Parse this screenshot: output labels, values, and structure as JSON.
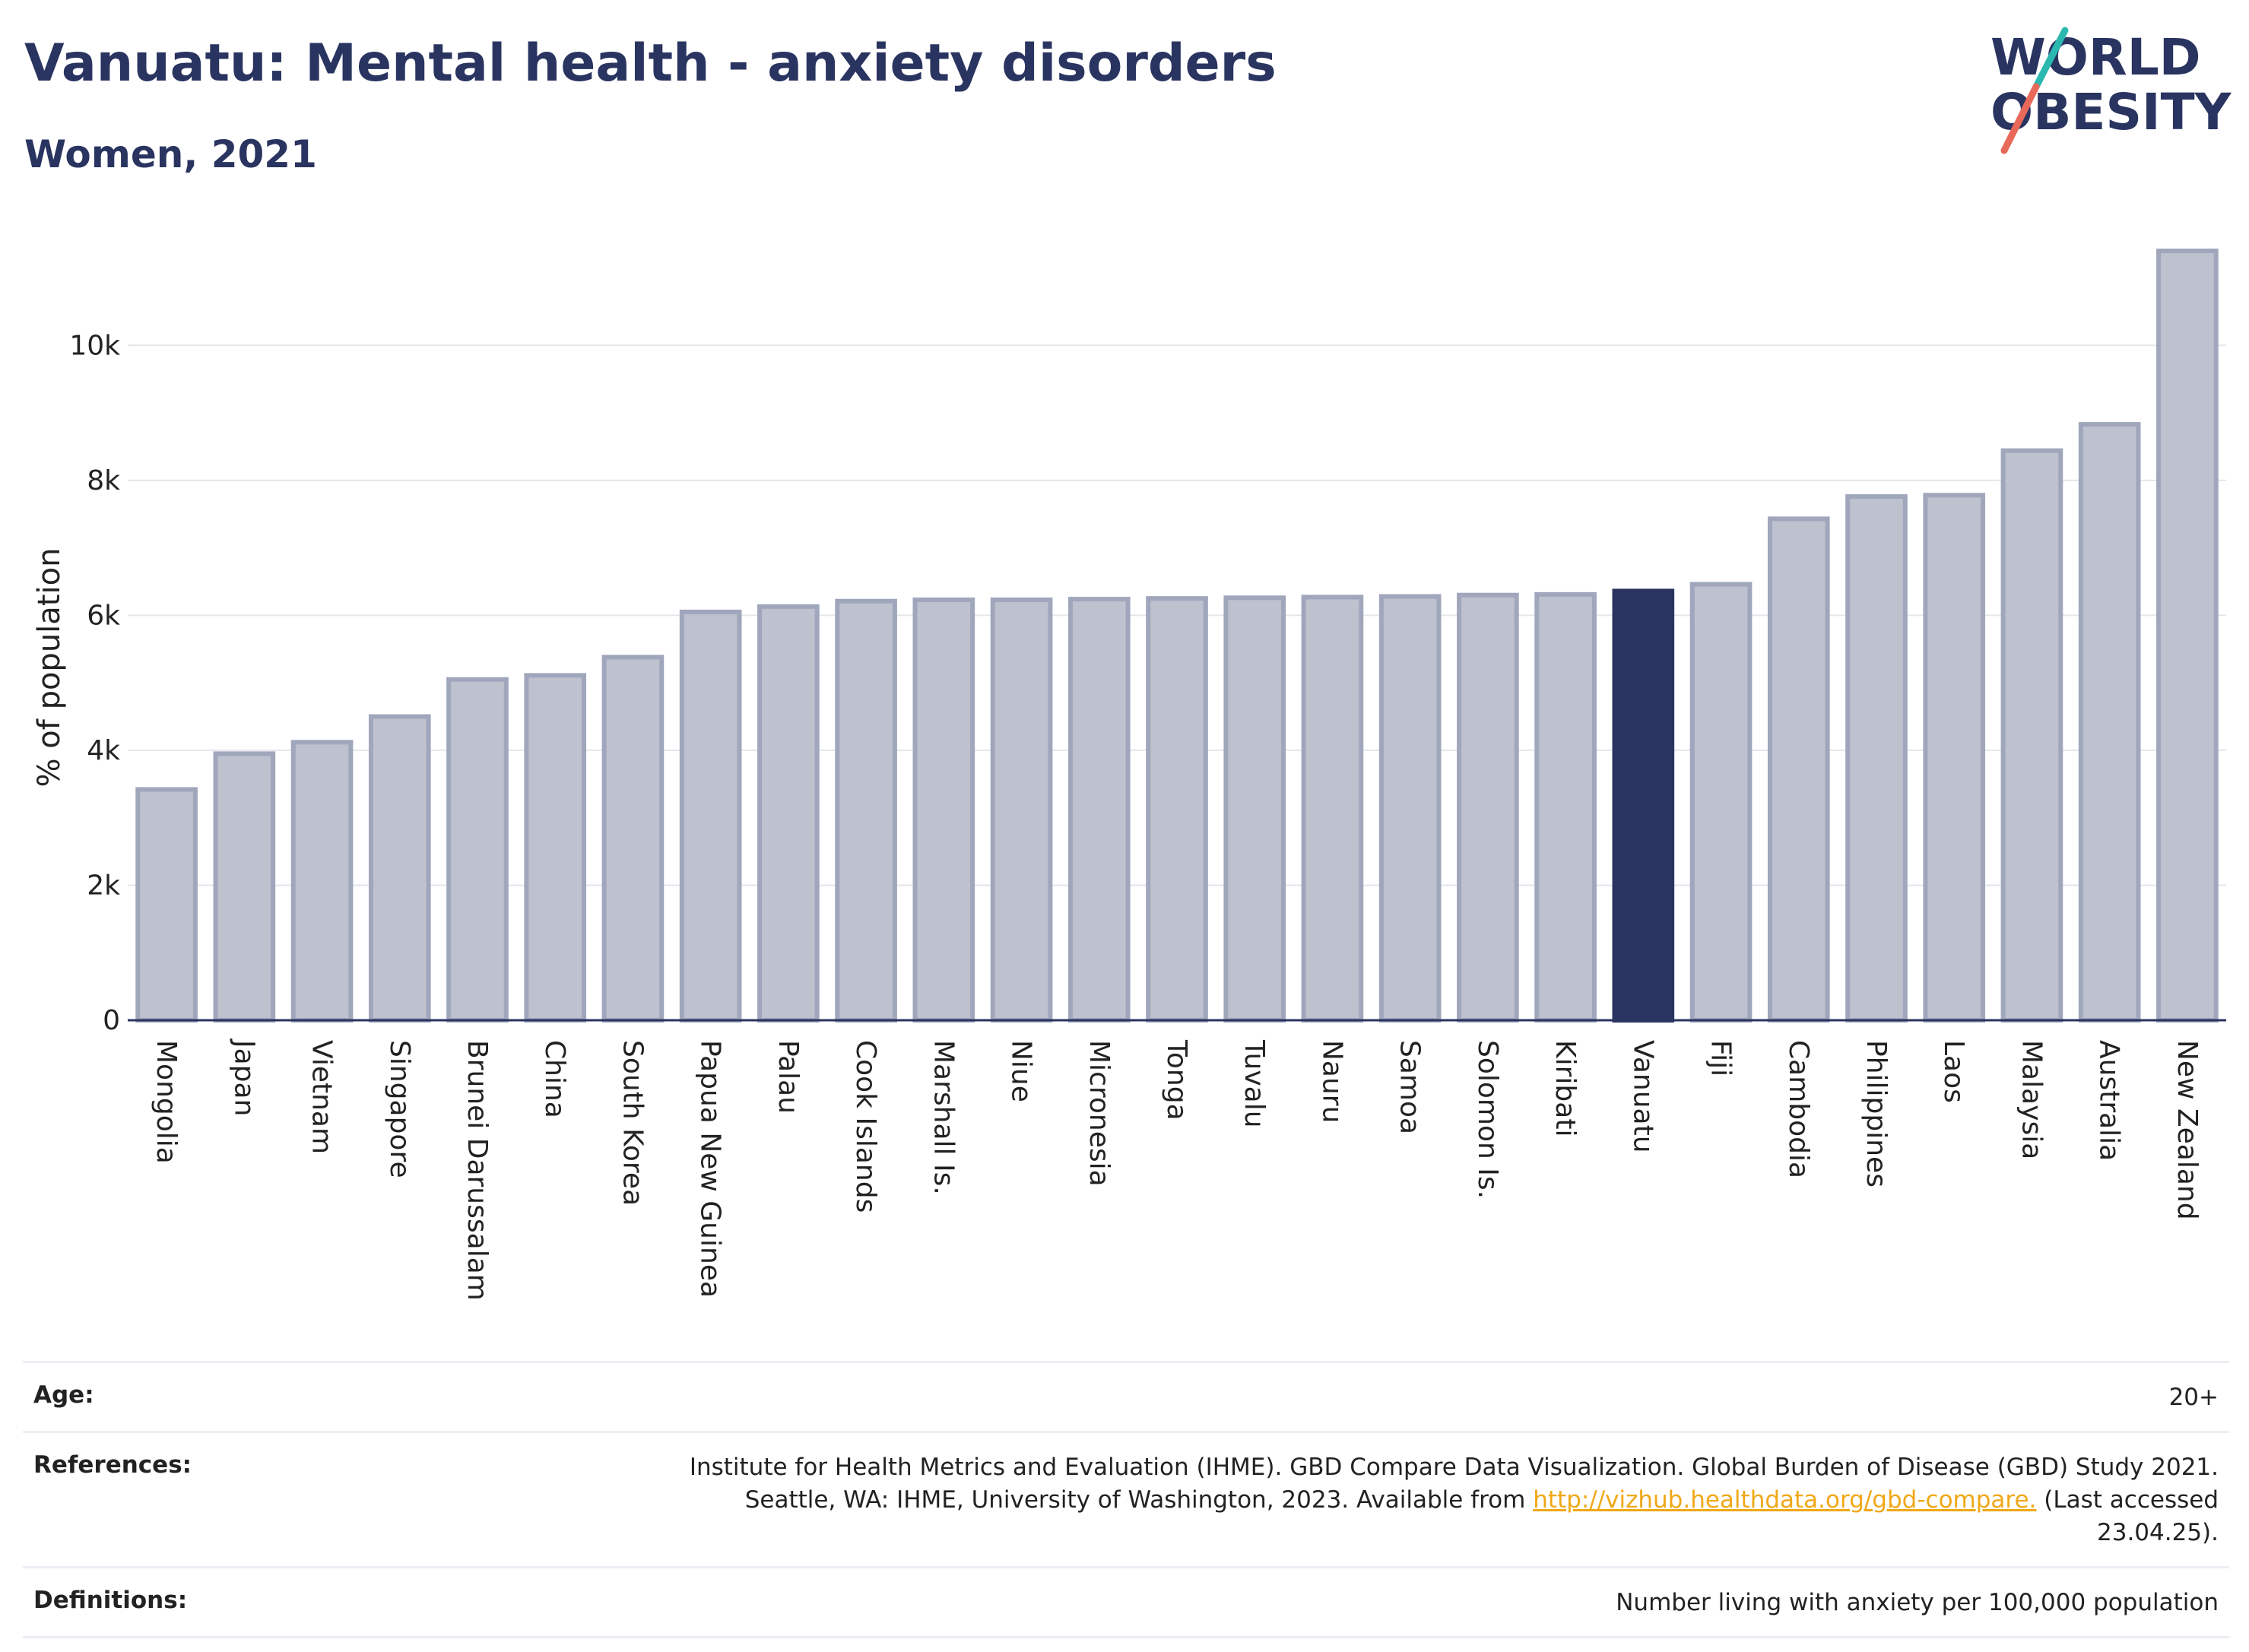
{
  "header": {
    "title": "Vanuatu: Mental health - anxiety disorders",
    "subtitle": "Women, 2021"
  },
  "logo": {
    "line1": "WORLD",
    "line2": "OBESITY",
    "text_color": "#2a3460",
    "slash_color_top": "#2bb8b0",
    "slash_color_bottom": "#e8685a"
  },
  "chart_data": {
    "type": "bar",
    "ylabel": "% of population",
    "xlabel": "",
    "ylim": [
      0,
      11400
    ],
    "yticks": [
      0,
      2000,
      4000,
      6000,
      8000,
      10000
    ],
    "ytick_labels": [
      "0",
      "2k",
      "4k",
      "6k",
      "8k",
      "10k"
    ],
    "grid": true,
    "highlight": "Vanuatu",
    "highlight_color": "#2a3460",
    "bar_color": "#bec1ce",
    "bar_border_color": "#a0a6bc",
    "categories": [
      "Mongolia",
      "Japan",
      "Vietnam",
      "Singapore",
      "Brunei Darussalam",
      "China",
      "South Korea",
      "Papua New Guinea",
      "Palau",
      "Cook Islands",
      "Marshall Is.",
      "Niue",
      "Micronesia",
      "Tonga",
      "Tuvalu",
      "Nauru",
      "Samoa",
      "Solomon Is.",
      "Kiribati",
      "Vanuatu",
      "Fiji",
      "Cambodia",
      "Philippines",
      "Laos",
      "Malaysia",
      "Australia",
      "New Zealand"
    ],
    "values": [
      3420,
      3950,
      4120,
      4500,
      5050,
      5110,
      5380,
      6050,
      6130,
      6210,
      6230,
      6230,
      6240,
      6250,
      6260,
      6270,
      6280,
      6300,
      6310,
      6360,
      6460,
      7430,
      7760,
      7780,
      8440,
      8830,
      11400
    ]
  },
  "info": {
    "age_label": "Age:",
    "age_value": "20+",
    "references_label": "References:",
    "references_text": "Institute for Health Metrics and Evaluation (IHME). GBD Compare Data Visualization. Global Burden of Disease (GBD) Study 2021. Seattle, WA: IHME, University of Washington, 2023. Available from",
    "references_link": "http://vizhub.healthdata.org/gbd-compare.",
    "references_suffix": "(Last accessed 23.04.25).",
    "definitions_label": "Definitions:",
    "definitions_value": "Number living with anxiety per 100,000 population"
  }
}
